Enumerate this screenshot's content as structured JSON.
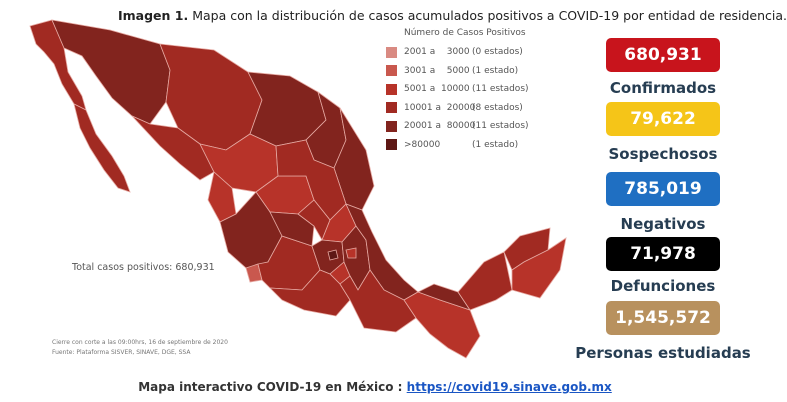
{
  "title": {
    "label": "Imagen 1.",
    "text": "Mapa con la distribución de casos acumulados positivos a COVID-19 por entidad de residencia."
  },
  "legend": {
    "title": "Número de Casos Positivos",
    "items": [
      {
        "range": "2001 a    3000",
        "count": "(0 estados)",
        "color": "#d98a82"
      },
      {
        "range": "3001 a    5000",
        "count": "(1 estado)",
        "color": "#c9584e"
      },
      {
        "range": "5001 a  10000",
        "count": "(11 estados)",
        "color": "#b73329"
      },
      {
        "range": "10001 a  20000",
        "count": "(8 estados)",
        "color": "#a12a22"
      },
      {
        "range": "20001 a  80000",
        "count": "(11 estados)",
        "color": "#82241e"
      },
      {
        "range": ">80000",
        "count": "(1 estado)",
        "color": "#5e1815"
      }
    ]
  },
  "total_text": "Total casos positivos: 680,931",
  "footnote": {
    "line1": "Cierre con corte a las 09:00hrs, 16 de septiembre de 2020",
    "line2": "Fuente: Plataforma SISVER, SINAVE, DGE, SSA"
  },
  "stats": [
    {
      "value": "680,931",
      "label": "Confirmados",
      "color": "#c8141c",
      "text_color": "#ffffff"
    },
    {
      "value": "79,622",
      "label": "Sospechosos",
      "color": "#f5c518",
      "text_color": "#ffffff"
    },
    {
      "value": "785,019",
      "label": "Negativos",
      "color": "#1f6fc2",
      "text_color": "#ffffff"
    },
    {
      "value": "71,978",
      "label": "Defunciones",
      "color": "#000000",
      "text_color": "#ffffff"
    },
    {
      "value": "1,545,572",
      "label": "Personas estudiadas",
      "color": "#b8915e",
      "text_color": "#ffffff"
    }
  ],
  "bottom": {
    "text": "Mapa interactivo COVID-19 en México :",
    "link": "https://covid19.sinave.gob.mx"
  },
  "colors": {
    "map_fill": "#a8322a",
    "map_dark": "#7f241f",
    "border": "#e6a9a2"
  }
}
